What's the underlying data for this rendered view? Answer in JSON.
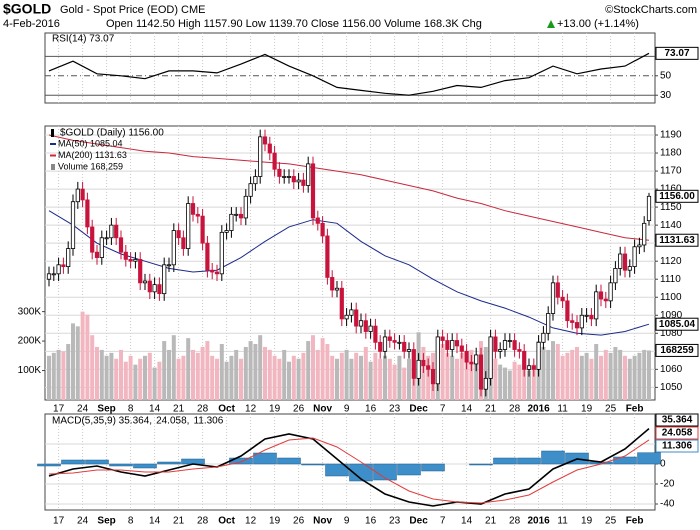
{
  "header": {
    "symbol": "$GOLD",
    "name": "Gold - Spot Price (EOD) CME",
    "source": "©StockCharts.com",
    "date": "4-Feb-2016",
    "quote": "Open 1142.50  High 1157.90  Low 1139.70  Close 1156.00  Volume 168.3K  Chg",
    "change": "+13.00 (+1.14%)"
  },
  "chart_data": [
    {
      "type": "line",
      "title": "RSI(14) 73.07",
      "ylim": [
        22,
        94
      ],
      "yticks": [
        30,
        50,
        70
      ],
      "x": [
        0,
        5,
        10,
        15,
        20,
        25,
        30,
        35,
        40,
        45,
        50,
        55,
        60,
        65,
        70,
        75,
        80,
        85,
        90,
        95,
        100,
        105,
        110,
        115,
        120,
        125
      ],
      "series": [
        {
          "color": "#000000",
          "values": [
            55,
            65,
            52,
            50,
            47,
            55,
            55,
            53,
            62,
            72,
            60,
            50,
            38,
            35,
            32,
            30,
            34,
            40,
            38,
            45,
            48,
            60,
            52,
            57,
            60,
            73.07
          ],
          "last_label": "73.07"
        }
      ]
    },
    {
      "type": "candlestick",
      "title": "$GOLD (Daily) 1156.00",
      "last_label": "1156.00",
      "up_color": "#000000",
      "down_color": "#c8143c",
      "ylim": [
        1043,
        1195
      ],
      "yticks": [
        1050,
        1060,
        1070,
        1080,
        1090,
        1100,
        1110,
        1120,
        1130,
        1140,
        1150,
        1160,
        1170,
        1180,
        1190
      ],
      "grid": true,
      "categories": [
        null,
        null,
        "17",
        null,
        null,
        null,
        null,
        "24",
        null,
        null,
        null,
        null,
        "Sep",
        null,
        null,
        null,
        null,
        "8",
        null,
        null,
        null,
        null,
        "14",
        null,
        null,
        null,
        null,
        "21",
        null,
        null,
        null,
        null,
        "28",
        null,
        null,
        null,
        null,
        "Oct",
        null,
        null,
        null,
        null,
        "12",
        null,
        null,
        null,
        null,
        "19",
        null,
        null,
        null,
        null,
        "26",
        null,
        null,
        null,
        null,
        "Nov",
        null,
        null,
        null,
        null,
        "9",
        null,
        null,
        null,
        null,
        "16",
        null,
        null,
        null,
        null,
        "23",
        null,
        null,
        null,
        null,
        "Dec",
        null,
        null,
        null,
        null,
        "7",
        null,
        null,
        null,
        null,
        "14",
        null,
        null,
        null,
        null,
        "21",
        null,
        null,
        null,
        null,
        "28",
        null,
        null,
        null,
        null,
        "2016",
        null,
        null,
        null,
        null,
        "11",
        null,
        null,
        null,
        null,
        "19",
        null,
        null,
        null,
        null,
        "25",
        null,
        null,
        null,
        null,
        "Feb",
        null,
        null,
        null
      ],
      "open": [
        1110,
        1113,
        1113,
        1118,
        1117,
        1127,
        1153,
        1160,
        1154,
        1139,
        1125,
        1122,
        1133,
        1133,
        1140,
        1133,
        1125,
        1121,
        1120,
        1121,
        1108,
        1109,
        1103,
        1107,
        1102,
        1118,
        1118,
        1137,
        1133,
        1127,
        1152,
        1146,
        1145,
        1130,
        1115,
        1114,
        1113,
        1136,
        1137,
        1146,
        1146,
        1144,
        1156,
        1163,
        1167,
        1189,
        1185,
        1180,
        1171,
        1167,
        1167,
        1167,
        1164,
        1165,
        1162,
        1174,
        1144,
        1141,
        1134,
        1111,
        1104,
        1105,
        1088,
        1090,
        1093,
        1084,
        1087,
        1081,
        1084,
        1075,
        1070,
        1078,
        1076,
        1075,
        1075,
        1070,
        1071,
        1055,
        1065,
        1062,
        1060,
        1052,
        1078,
        1076,
        1071,
        1076,
        1073,
        1070,
        1064,
        1063,
        1068,
        1049,
        1055,
        1078,
        1070,
        1071,
        1076,
        1076,
        1071,
        1070,
        1060,
        1062,
        1060,
        1075,
        1080,
        1091,
        1108,
        1100,
        1098,
        1087,
        1086,
        1083,
        1090,
        1090,
        1088,
        1103,
        1099,
        1098,
        1108,
        1116,
        1124,
        1115,
        1117,
        1128,
        1129,
        1142.5
      ],
      "high": [
        1117,
        1117,
        1122,
        1122,
        1131,
        1157,
        1164,
        1164,
        1158,
        1143,
        1129,
        1137,
        1137,
        1144,
        1144,
        1137,
        1129,
        1125,
        1125,
        1125,
        1113,
        1113,
        1111,
        1111,
        1122,
        1122,
        1141,
        1141,
        1137,
        1156,
        1156,
        1150,
        1149,
        1134,
        1119,
        1118,
        1140,
        1141,
        1150,
        1150,
        1150,
        1160,
        1167,
        1171,
        1193,
        1193,
        1189,
        1184,
        1175,
        1171,
        1171,
        1171,
        1169,
        1169,
        1178,
        1178,
        1148,
        1145,
        1138,
        1115,
        1109,
        1109,
        1094,
        1097,
        1097,
        1091,
        1091,
        1088,
        1088,
        1079,
        1082,
        1082,
        1080,
        1079,
        1079,
        1075,
        1075,
        1069,
        1069,
        1066,
        1064,
        1082,
        1082,
        1080,
        1080,
        1080,
        1077,
        1074,
        1068,
        1072,
        1072,
        1059,
        1082,
        1082,
        1075,
        1080,
        1080,
        1080,
        1075,
        1074,
        1066,
        1066,
        1079,
        1084,
        1095,
        1112,
        1112,
        1104,
        1102,
        1091,
        1090,
        1094,
        1094,
        1094,
        1107,
        1107,
        1103,
        1112,
        1120,
        1128,
        1128,
        1121,
        1132,
        1133,
        1145,
        1157.9
      ],
      "low": [
        1106,
        1109,
        1109,
        1113,
        1113,
        1123,
        1149,
        1150,
        1135,
        1121,
        1118,
        1118,
        1129,
        1129,
        1129,
        1121,
        1117,
        1116,
        1116,
        1104,
        1104,
        1099,
        1099,
        1098,
        1098,
        1114,
        1114,
        1129,
        1123,
        1123,
        1142,
        1141,
        1126,
        1111,
        1110,
        1109,
        1109,
        1132,
        1133,
        1142,
        1140,
        1140,
        1152,
        1159,
        1163,
        1181,
        1176,
        1167,
        1163,
        1163,
        1163,
        1160,
        1160,
        1158,
        1158,
        1140,
        1137,
        1130,
        1107,
        1100,
        1100,
        1084,
        1084,
        1086,
        1080,
        1080,
        1077,
        1077,
        1071,
        1066,
        1066,
        1072,
        1071,
        1071,
        1066,
        1066,
        1051,
        1051,
        1058,
        1056,
        1048,
        1048,
        1072,
        1067,
        1067,
        1069,
        1066,
        1060,
        1059,
        1059,
        1045,
        1045,
        1051,
        1066,
        1066,
        1067,
        1072,
        1067,
        1066,
        1056,
        1056,
        1056,
        1056,
        1071,
        1076,
        1087,
        1096,
        1094,
        1083,
        1082,
        1079,
        1079,
        1086,
        1084,
        1084,
        1095,
        1094,
        1094,
        1104,
        1112,
        1111,
        1111,
        1113,
        1124,
        1125,
        1139.7
      ],
      "close": [
        1113,
        1113,
        1118,
        1117,
        1127,
        1153,
        1160,
        1154,
        1139,
        1125,
        1122,
        1133,
        1133,
        1140,
        1133,
        1125,
        1121,
        1120,
        1121,
        1108,
        1109,
        1103,
        1107,
        1102,
        1118,
        1118,
        1137,
        1133,
        1127,
        1152,
        1146,
        1145,
        1130,
        1115,
        1114,
        1113,
        1136,
        1137,
        1146,
        1146,
        1144,
        1156,
        1163,
        1167,
        1189,
        1185,
        1180,
        1171,
        1167,
        1167,
        1167,
        1164,
        1165,
        1162,
        1174,
        1144,
        1141,
        1134,
        1111,
        1104,
        1105,
        1088,
        1090,
        1093,
        1084,
        1087,
        1081,
        1084,
        1075,
        1070,
        1078,
        1076,
        1075,
        1075,
        1070,
        1071,
        1055,
        1065,
        1062,
        1060,
        1052,
        1078,
        1076,
        1071,
        1076,
        1073,
        1070,
        1064,
        1063,
        1068,
        1049,
        1055,
        1078,
        1070,
        1071,
        1076,
        1076,
        1071,
        1070,
        1060,
        1062,
        1060,
        1075,
        1080,
        1091,
        1108,
        1100,
        1098,
        1087,
        1086,
        1083,
        1090,
        1090,
        1088,
        1103,
        1099,
        1098,
        1108,
        1116,
        1124,
        1115,
        1117,
        1128,
        1129,
        1141,
        1156
      ],
      "x": [
        0,
        5,
        10,
        15,
        20,
        25,
        30,
        35,
        40,
        45,
        50,
        55,
        60,
        65,
        70,
        75,
        80,
        85,
        90,
        95,
        100,
        105,
        110,
        115,
        120,
        125
      ],
      "series": [
        {
          "name": "MA(50) 1085.04",
          "color": "#1c2a8c",
          "last_label": "1085.04",
          "values": [
            1148,
            1140,
            1130,
            1124,
            1120,
            1116,
            1114,
            1115,
            1122,
            1131,
            1139,
            1143,
            1141,
            1131,
            1123,
            1118,
            1110,
            1103,
            1098,
            1094,
            1089,
            1083,
            1080,
            1079,
            1081,
            1085.04
          ]
        },
        {
          "name": "MA(200) 1131.63",
          "color": "#c8283c",
          "last_label": "1131.63",
          "values": [
            1190,
            1187,
            1185,
            1183,
            1181,
            1180,
            1178,
            1177,
            1176,
            1175,
            1174,
            1172,
            1170,
            1168,
            1165,
            1162,
            1159,
            1155,
            1152,
            1148,
            1145,
            1142,
            1139,
            1136,
            1133,
            1131.63
          ]
        }
      ],
      "volume": {
        "name": "Volume 168,259",
        "last_label": "168259",
        "up_color": "#b9b9b9",
        "down_color": "#f2b6c0",
        "ylim": [
          0,
          930
        ],
        "yticks": [
          {
            "value": 100,
            "label": "100K"
          },
          {
            "value": 200,
            "label": "200K"
          },
          {
            "value": 300,
            "label": "300K"
          }
        ],
        "values": [
          150,
          160,
          170,
          165,
          190,
          260,
          250,
          300,
          290,
          220,
          180,
          170,
          150,
          160,
          140,
          170,
          130,
          150,
          120,
          140,
          150,
          160,
          110,
          130,
          200,
          170,
          220,
          140,
          150,
          210,
          170,
          160,
          180,
          200,
          150,
          140,
          190,
          130,
          150,
          170,
          140,
          180,
          200,
          190,
          220,
          180,
          170,
          150,
          140,
          170,
          130,
          150,
          140,
          160,
          200,
          220,
          170,
          210,
          190,
          150,
          140,
          160,
          170,
          140,
          160,
          150,
          180,
          130,
          160,
          140,
          150,
          140,
          120,
          150,
          110,
          140,
          170,
          230,
          180,
          150,
          160,
          210,
          190,
          160,
          150,
          140,
          160,
          150,
          170,
          140,
          200,
          180,
          160,
          140,
          120,
          110,
          100,
          130,
          120,
          110,
          100,
          120,
          200,
          180,
          170,
          200,
          190,
          150,
          160,
          170,
          180,
          150,
          160,
          140,
          190,
          150,
          170,
          160,
          180,
          170,
          150,
          140,
          150,
          160,
          170,
          168.259
        ]
      }
    },
    {
      "type": "macd",
      "ylim": [
        -46,
        50
      ],
      "yticks": [
        -40,
        -20,
        0,
        20
      ],
      "x": [
        0,
        5,
        10,
        15,
        20,
        25,
        30,
        35,
        40,
        45,
        50,
        55,
        60,
        65,
        70,
        75,
        80,
        85,
        90,
        95,
        100,
        105,
        110,
        115,
        120,
        125
      ],
      "series": [
        {
          "name": "MACD(5,35,9) 35.364,",
          "kind": "line",
          "color": "#000000",
          "last_label": "35.364",
          "values": [
            -12,
            -5,
            -2,
            -8,
            -12,
            -6,
            0,
            -3,
            8,
            25,
            30,
            25,
            5,
            -15,
            -30,
            -38,
            -42,
            -38,
            -40,
            -30,
            -25,
            -5,
            5,
            2,
            15,
            35.364
          ]
        },
        {
          "name": "24.058,",
          "kind": "line",
          "color": "#e03c3c",
          "last_label": "24.058",
          "values": [
            -10,
            -9,
            -6,
            -6,
            -8,
            -8,
            -5,
            -3,
            2,
            14,
            24,
            26,
            17,
            2,
            -14,
            -27,
            -35,
            -38,
            -39,
            -36,
            -31,
            -18,
            -6,
            0,
            8,
            24.058
          ]
        },
        {
          "name": "11.306",
          "kind": "bar",
          "color": "#3d8ec9",
          "last_label": "11.306",
          "values": [
            -2,
            4,
            4,
            -2,
            -4,
            2,
            5,
            0,
            6,
            11,
            6,
            -1,
            -12,
            -17,
            -16,
            -11,
            -7,
            0,
            -1,
            6,
            6,
            13,
            11,
            2,
            7,
            11.306
          ]
        }
      ]
    }
  ]
}
